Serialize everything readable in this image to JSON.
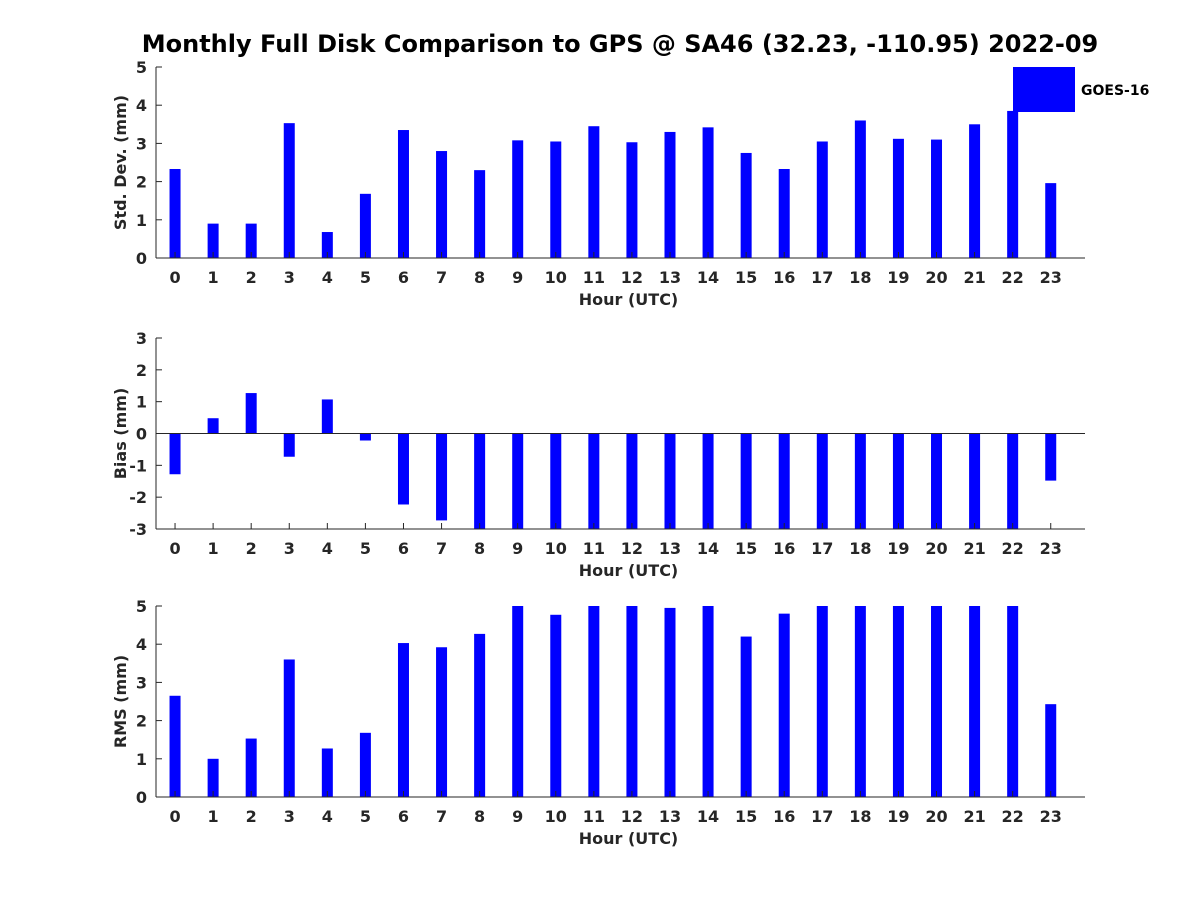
{
  "title": "Monthly Full Disk Comparison to GPS @ SA46 (32.23, -110.95) 2022-09",
  "legend": {
    "label": "GOES-16",
    "color": "#0000ff"
  },
  "chart_data": [
    {
      "type": "bar",
      "categories": [
        "0",
        "1",
        "2",
        "3",
        "4",
        "5",
        "6",
        "7",
        "8",
        "9",
        "10",
        "11",
        "12",
        "13",
        "14",
        "15",
        "16",
        "17",
        "18",
        "19",
        "20",
        "21",
        "22",
        "23"
      ],
      "series": [
        {
          "name": "GOES-16",
          "values": [
            2.33,
            0.9,
            0.9,
            3.53,
            0.68,
            1.68,
            3.35,
            2.8,
            2.3,
            3.08,
            3.05,
            3.45,
            3.03,
            3.3,
            3.42,
            2.75,
            2.33,
            3.05,
            3.6,
            3.12,
            3.1,
            3.5,
            3.85,
            1.96
          ]
        }
      ],
      "xlabel": "Hour (UTC)",
      "ylabel": "Std. Dev. (mm)",
      "ylim": [
        0,
        5
      ],
      "yticks": [
        0,
        1,
        2,
        3,
        4,
        5
      ],
      "grid": false,
      "legend_position": "top-right"
    },
    {
      "type": "bar",
      "categories": [
        "0",
        "1",
        "2",
        "3",
        "4",
        "5",
        "6",
        "7",
        "8",
        "9",
        "10",
        "11",
        "12",
        "13",
        "14",
        "15",
        "16",
        "17",
        "18",
        "19",
        "20",
        "21",
        "22",
        "23"
      ],
      "series": [
        {
          "name": "GOES-16",
          "values": [
            -1.28,
            0.48,
            1.27,
            -0.73,
            1.07,
            -0.22,
            -2.23,
            -2.73,
            -3,
            -3,
            -3,
            -3,
            -3,
            -3,
            -3,
            -3,
            -3,
            -3,
            -3,
            -3,
            -3,
            -3,
            -3,
            -1.48
          ]
        }
      ],
      "xlabel": "Hour (UTC)",
      "ylabel": "Bias (mm)",
      "ylim": [
        -3,
        3
      ],
      "yticks": [
        -3,
        -2,
        -1,
        0,
        1,
        2,
        3
      ],
      "grid": false
    },
    {
      "type": "bar",
      "categories": [
        "0",
        "1",
        "2",
        "3",
        "4",
        "5",
        "6",
        "7",
        "8",
        "9",
        "10",
        "11",
        "12",
        "13",
        "14",
        "15",
        "16",
        "17",
        "18",
        "19",
        "20",
        "21",
        "22",
        "23"
      ],
      "series": [
        {
          "name": "GOES-16",
          "values": [
            2.65,
            1.0,
            1.53,
            3.6,
            1.27,
            1.68,
            4.03,
            3.92,
            4.27,
            5,
            4.77,
            5,
            5,
            4.95,
            5,
            4.2,
            4.8,
            5,
            5,
            5,
            5,
            5,
            5,
            2.43
          ]
        }
      ],
      "xlabel": "Hour (UTC)",
      "ylabel": "RMS (mm)",
      "ylim": [
        0,
        5
      ],
      "yticks": [
        0,
        1,
        2,
        3,
        4,
        5
      ],
      "grid": false
    }
  ]
}
